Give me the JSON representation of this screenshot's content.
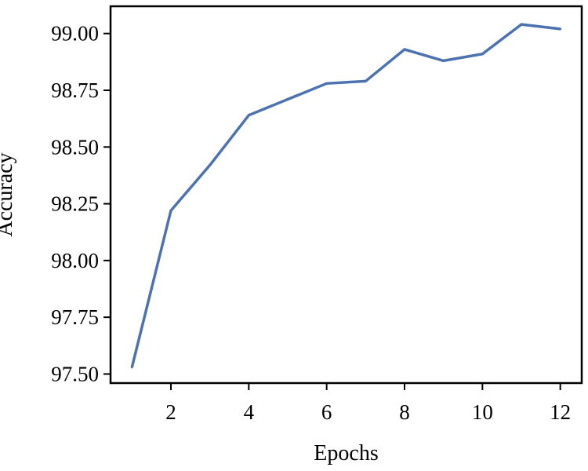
{
  "chart_data": {
    "type": "line",
    "title": "",
    "xlabel": "Epochs",
    "ylabel": "Accuracy",
    "x": [
      1,
      2,
      3,
      4,
      5,
      6,
      7,
      8,
      9,
      10,
      11,
      12
    ],
    "series": [
      {
        "values": [
          97.53,
          98.22,
          98.42,
          98.64,
          98.71,
          98.78,
          98.79,
          98.93,
          98.88,
          98.91,
          99.04,
          99.02
        ]
      }
    ],
    "xlim": [
      0.45,
      12.55
    ],
    "ylim": [
      97.46,
      99.12
    ],
    "xticks": [
      2,
      4,
      6,
      8,
      10,
      12
    ],
    "xtick_labels": [
      "2",
      "4",
      "6",
      "8",
      "10",
      "12"
    ],
    "yticks": [
      97.5,
      97.75,
      98.0,
      98.25,
      98.5,
      98.75,
      99.0
    ],
    "ytick_labels": [
      "97.50",
      "97.75",
      "98.00",
      "98.25",
      "98.50",
      "98.75",
      "99.00"
    ],
    "grid": false,
    "legend": "none",
    "colors": {
      "line": "#4c72b0",
      "axis": "#000000"
    }
  }
}
